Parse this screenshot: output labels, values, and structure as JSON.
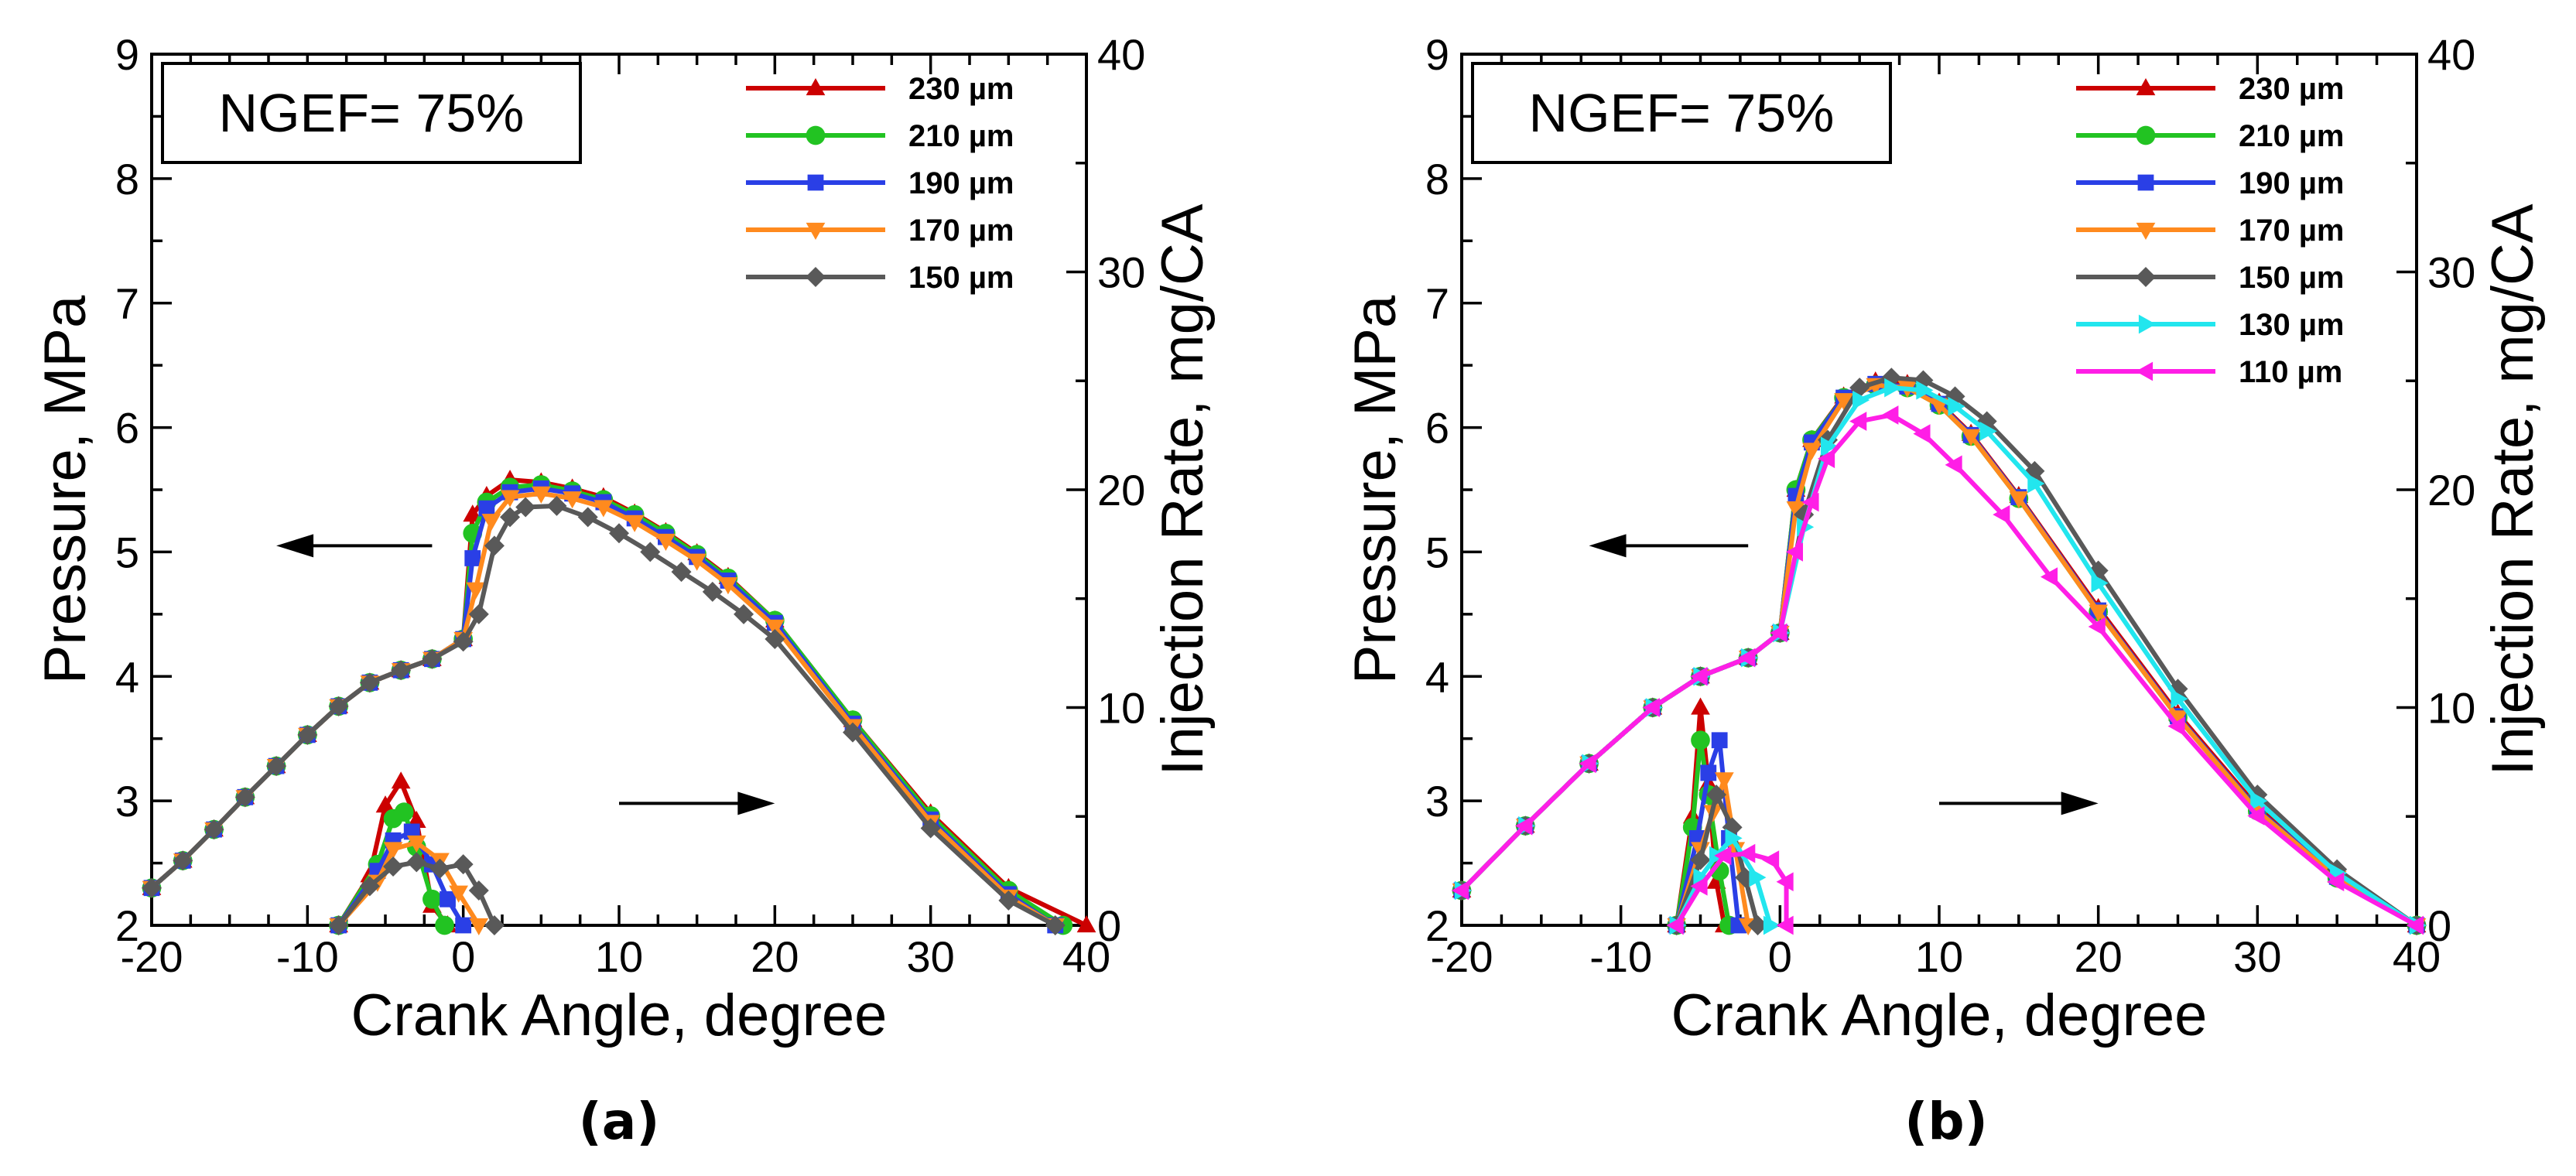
{
  "colors": {
    "230 µm": "#cc0000",
    "210 µm": "#22c322",
    "190 µm": "#2a3fe6",
    "170 µm": "#ff8a1e",
    "150 µm": "#595959",
    "130 µm": "#22e6ee",
    "110 µm": "#ff1ee6"
  },
  "chart_data": [
    {
      "type": "line",
      "panel_label": "(a)",
      "annotation": "NGEF= 75%",
      "xlabel": "Crank Angle, degree",
      "ylabel": "Pressure, MPa",
      "y2label": "Injection Rate, mg/CA",
      "xlim": [
        -20,
        40
      ],
      "ylim": [
        2,
        9
      ],
      "y2lim": [
        0,
        40
      ],
      "xticks": [
        "-20",
        "-10",
        "0",
        "10",
        "20",
        "30",
        "40"
      ],
      "yticks": [
        "2",
        "3",
        "4",
        "5",
        "6",
        "7",
        "8",
        "9"
      ],
      "y2ticks": [
        "0",
        "10",
        "20",
        "30",
        "40"
      ],
      "arrows": [
        {
          "direction": "left",
          "points_to": "Pressure, MPa",
          "from": [
            -2,
            5.05
          ],
          "to": [
            -12,
            5.05
          ]
        },
        {
          "direction": "right",
          "points_to": "Injection Rate, mg/CA",
          "from": [
            10,
            2.98
          ],
          "to": [
            20,
            2.98
          ]
        }
      ],
      "legend": [
        "230 µm",
        "210 µm",
        "190 µm",
        "170 µm",
        "150 µm"
      ],
      "series": [
        {
          "name": "230 µm",
          "marker": "triangle-up",
          "axis": "left",
          "x": [
            -20,
            -18,
            -16,
            -14,
            -12,
            -10,
            -8,
            -6,
            -4,
            -2,
            0,
            0.6,
            1.5,
            3,
            5,
            7,
            9,
            11,
            13,
            15,
            17,
            20,
            25,
            30,
            35,
            40
          ],
          "y": [
            2.3,
            2.52,
            2.77,
            3.03,
            3.28,
            3.53,
            3.76,
            3.95,
            4.05,
            4.14,
            4.3,
            5.3,
            5.45,
            5.58,
            5.56,
            5.51,
            5.44,
            5.31,
            5.16,
            4.99,
            4.8,
            4.45,
            3.65,
            2.9,
            2.3,
            2.0
          ]
        },
        {
          "name": "210 µm",
          "marker": "circle",
          "axis": "left",
          "x": [
            -20,
            -18,
            -16,
            -14,
            -12,
            -10,
            -8,
            -6,
            -4,
            -2,
            0,
            0.6,
            1.5,
            3,
            5,
            7,
            9,
            11,
            13,
            15,
            17,
            20,
            25,
            30,
            35,
            38.5
          ],
          "y": [
            2.3,
            2.52,
            2.77,
            3.03,
            3.28,
            3.53,
            3.76,
            3.95,
            4.05,
            4.14,
            4.3,
            5.15,
            5.4,
            5.52,
            5.54,
            5.49,
            5.42,
            5.3,
            5.15,
            4.98,
            4.79,
            4.45,
            3.65,
            2.88,
            2.28,
            2.0
          ]
        },
        {
          "name": "190 µm",
          "marker": "square",
          "axis": "left",
          "x": [
            -20,
            -18,
            -16,
            -14,
            -12,
            -10,
            -8,
            -6,
            -4,
            -2,
            0,
            0.6,
            1.5,
            3,
            5,
            7,
            9,
            11,
            13,
            15,
            17,
            20,
            25,
            30,
            35,
            38
          ],
          "y": [
            2.3,
            2.52,
            2.77,
            3.03,
            3.28,
            3.53,
            3.76,
            3.95,
            4.05,
            4.14,
            4.3,
            4.95,
            5.35,
            5.48,
            5.51,
            5.47,
            5.4,
            5.27,
            5.12,
            4.96,
            4.77,
            4.43,
            3.62,
            2.85,
            2.25,
            2.0
          ]
        },
        {
          "name": "170 µm",
          "marker": "triangle-down",
          "axis": "left",
          "x": [
            -20,
            -18,
            -16,
            -14,
            -12,
            -10,
            -8,
            -6,
            -4,
            -2,
            0,
            0.8,
            1.8,
            3,
            5,
            7,
            9,
            11,
            13,
            15,
            17,
            20,
            25,
            30,
            35,
            38
          ],
          "y": [
            2.3,
            2.52,
            2.77,
            3.03,
            3.28,
            3.53,
            3.76,
            3.95,
            4.05,
            4.14,
            4.3,
            4.7,
            5.25,
            5.44,
            5.47,
            5.43,
            5.36,
            5.24,
            5.09,
            4.93,
            4.74,
            4.4,
            3.6,
            2.83,
            2.23,
            2.0
          ]
        },
        {
          "name": "150 µm",
          "marker": "diamond",
          "axis": "left",
          "x": [
            -20,
            -18,
            -16,
            -14,
            -12,
            -10,
            -8,
            -6,
            -4,
            -2,
            0,
            1,
            2,
            3,
            4,
            6,
            8,
            10,
            12,
            14,
            16,
            18,
            20,
            25,
            30,
            35,
            38
          ],
          "y": [
            2.3,
            2.52,
            2.77,
            3.03,
            3.28,
            3.53,
            3.76,
            3.95,
            4.05,
            4.14,
            4.28,
            4.5,
            5.05,
            5.28,
            5.36,
            5.37,
            5.28,
            5.15,
            5.0,
            4.84,
            4.68,
            4.5,
            4.3,
            3.55,
            2.78,
            2.2,
            2.0
          ]
        },
        {
          "name": "230 µm",
          "marker": "triangle-up",
          "axis": "right",
          "x": [
            -8,
            -6,
            -5,
            -4,
            -3,
            -2,
            -1
          ],
          "y": [
            0,
            2.3,
            5.5,
            6.6,
            4.8,
            0.9,
            0
          ]
        },
        {
          "name": "210 µm",
          "marker": "circle",
          "axis": "right",
          "x": [
            -8,
            -5.5,
            -4.5,
            -3.8,
            -3,
            -2,
            -1.2
          ],
          "y": [
            0,
            2.8,
            4.9,
            5.2,
            3.6,
            1.2,
            0
          ]
        },
        {
          "name": "190 µm",
          "marker": "square",
          "axis": "right",
          "x": [
            -8,
            -5.5,
            -4.5,
            -3.3,
            -2,
            -1,
            0
          ],
          "y": [
            0,
            2.5,
            3.9,
            4.3,
            2.8,
            1.2,
            0
          ]
        },
        {
          "name": "170 µm",
          "marker": "triangle-down",
          "axis": "right",
          "x": [
            -8,
            -5.5,
            -4.5,
            -3,
            -1.5,
            -0.3,
            1
          ],
          "y": [
            0,
            2.0,
            3.5,
            3.8,
            3.0,
            1.5,
            0
          ]
        },
        {
          "name": "150 µm",
          "marker": "diamond",
          "axis": "right",
          "x": [
            -8,
            -6,
            -4.5,
            -3,
            -1.5,
            0,
            1,
            2
          ],
          "y": [
            0,
            1.8,
            2.7,
            2.9,
            2.6,
            2.8,
            1.6,
            0
          ]
        }
      ]
    },
    {
      "type": "line",
      "panel_label": "(b)",
      "annotation": "NGEF= 75%",
      "xlabel": "Crank Angle, degree",
      "ylabel": "Pressure, MPa",
      "y2label": "Injection Rate, mg/CA",
      "xlim": [
        -20,
        40
      ],
      "ylim": [
        2,
        9
      ],
      "y2lim": [
        0,
        40
      ],
      "xticks": [
        "-20",
        "-10",
        "0",
        "10",
        "20",
        "30",
        "40"
      ],
      "yticks": [
        "2",
        "3",
        "4",
        "5",
        "6",
        "7",
        "8",
        "9"
      ],
      "y2ticks": [
        "0",
        "10",
        "20",
        "30",
        "40"
      ],
      "arrows": [
        {
          "direction": "left",
          "points_to": "Pressure, MPa",
          "from": [
            -2,
            5.05
          ],
          "to": [
            -12,
            5.05
          ]
        },
        {
          "direction": "right",
          "points_to": "Injection Rate, mg/CA",
          "from": [
            10,
            2.98
          ],
          "to": [
            20,
            2.98
          ]
        }
      ],
      "legend": [
        "230 µm",
        "210 µm",
        "190 µm",
        "170 µm",
        "150 µm",
        "130 µm",
        "110 µm"
      ],
      "series": [
        {
          "name": "230 µm",
          "marker": "triangle-up",
          "axis": "left",
          "x": [
            -20,
            -16,
            -12,
            -8,
            -5,
            -2,
            0,
            1,
            2,
            4,
            6,
            8,
            10,
            12,
            15,
            20,
            25,
            30,
            35,
            40
          ],
          "y": [
            2.28,
            2.8,
            3.3,
            3.75,
            4.0,
            4.15,
            4.35,
            5.5,
            5.9,
            6.25,
            6.37,
            6.35,
            6.2,
            5.95,
            5.45,
            4.55,
            3.7,
            2.95,
            2.4,
            2.0
          ]
        },
        {
          "name": "210 µm",
          "marker": "circle",
          "axis": "left",
          "x": [
            -20,
            -16,
            -12,
            -8,
            -5,
            -2,
            0,
            1,
            2,
            4,
            6,
            8,
            10,
            12,
            15,
            20,
            25,
            30,
            35,
            40
          ],
          "y": [
            2.28,
            2.8,
            3.3,
            3.75,
            4.0,
            4.15,
            4.35,
            5.5,
            5.9,
            6.24,
            6.34,
            6.32,
            6.18,
            5.93,
            5.43,
            4.52,
            3.67,
            2.92,
            2.38,
            2.0
          ]
        },
        {
          "name": "190 µm",
          "marker": "square",
          "axis": "left",
          "x": [
            -20,
            -16,
            -12,
            -8,
            -5,
            -2,
            0,
            1,
            2,
            4,
            6,
            8,
            10,
            12,
            15,
            20,
            25,
            30,
            35,
            40
          ],
          "y": [
            2.28,
            2.8,
            3.3,
            3.75,
            4.0,
            4.15,
            4.35,
            5.45,
            5.88,
            6.24,
            6.35,
            6.33,
            6.19,
            5.94,
            5.44,
            4.53,
            3.68,
            2.93,
            2.39,
            2.0
          ]
        },
        {
          "name": "170 µm",
          "marker": "triangle-down",
          "axis": "left",
          "x": [
            -20,
            -16,
            -12,
            -8,
            -5,
            -2,
            0,
            1,
            2,
            4,
            6,
            8,
            10,
            12,
            15,
            20,
            25,
            30,
            35,
            40
          ],
          "y": [
            2.28,
            2.8,
            3.3,
            3.75,
            4.0,
            4.15,
            4.35,
            5.35,
            5.82,
            6.22,
            6.34,
            6.32,
            6.18,
            5.93,
            5.43,
            4.52,
            3.67,
            2.92,
            2.38,
            2.0
          ]
        },
        {
          "name": "150 µm",
          "marker": "diamond",
          "axis": "left",
          "x": [
            -20,
            -16,
            -12,
            -8,
            -5,
            -2,
            0,
            1.5,
            3,
            5,
            7,
            9,
            11,
            13,
            16,
            20,
            25,
            30,
            35,
            40
          ],
          "y": [
            2.28,
            2.8,
            3.3,
            3.75,
            4.0,
            4.15,
            4.35,
            5.3,
            5.9,
            6.32,
            6.4,
            6.38,
            6.25,
            6.05,
            5.65,
            4.85,
            3.9,
            3.05,
            2.45,
            2.0
          ]
        },
        {
          "name": "130 µm",
          "marker": "triangle-right",
          "axis": "left",
          "x": [
            -20,
            -16,
            -12,
            -8,
            -5,
            -2,
            0,
            1.5,
            3,
            5,
            7,
            9,
            11,
            13,
            16,
            20,
            25,
            30,
            35,
            40
          ],
          "y": [
            2.28,
            2.8,
            3.3,
            3.75,
            4.0,
            4.15,
            4.35,
            5.2,
            5.85,
            6.22,
            6.32,
            6.3,
            6.17,
            5.97,
            5.55,
            4.75,
            3.82,
            3.0,
            2.42,
            2.0
          ]
        },
        {
          "name": "110 µm",
          "marker": "triangle-left",
          "axis": "left",
          "x": [
            -20,
            -16,
            -12,
            -8,
            -5,
            -2,
            0,
            1,
            2,
            3,
            5,
            7,
            9,
            11,
            14,
            17,
            20,
            25,
            30,
            35,
            40
          ],
          "y": [
            2.28,
            2.8,
            3.3,
            3.75,
            4.0,
            4.15,
            4.35,
            5.0,
            5.4,
            5.75,
            6.05,
            6.1,
            5.95,
            5.7,
            5.3,
            4.8,
            4.4,
            3.6,
            2.88,
            2.35,
            2.0
          ]
        },
        {
          "name": "230 µm",
          "marker": "triangle-up",
          "axis": "right",
          "x": [
            -6.5,
            -5.5,
            -5,
            -4.5,
            -4,
            -3.5
          ],
          "y": [
            0,
            5.0,
            10.0,
            6.5,
            2.0,
            0
          ]
        },
        {
          "name": "210 µm",
          "marker": "circle",
          "axis": "right",
          "x": [
            -6.5,
            -5.5,
            -5,
            -4.5,
            -3.8,
            -3.2
          ],
          "y": [
            0,
            4.5,
            8.5,
            6.0,
            2.5,
            0
          ]
        },
        {
          "name": "190 µm",
          "marker": "square",
          "axis": "right",
          "x": [
            -6.5,
            -5.2,
            -4.5,
            -3.8,
            -3.2,
            -2.6
          ],
          "y": [
            0,
            4.0,
            7.0,
            8.5,
            4.0,
            0
          ]
        },
        {
          "name": "170 µm",
          "marker": "triangle-down",
          "axis": "right",
          "x": [
            -6.5,
            -5,
            -4.2,
            -3.5,
            -2.8,
            -2
          ],
          "y": [
            0,
            3.5,
            5.2,
            6.7,
            3.5,
            0
          ]
        },
        {
          "name": "150 µm",
          "marker": "diamond",
          "axis": "right",
          "x": [
            -6.5,
            -5,
            -4,
            -3,
            -2.2,
            -1.4
          ],
          "y": [
            0,
            3.0,
            6.0,
            4.5,
            2.2,
            0
          ]
        },
        {
          "name": "130 µm",
          "marker": "triangle-right",
          "axis": "right",
          "x": [
            -6.5,
            -5,
            -4,
            -3,
            -1.5,
            -0.6
          ],
          "y": [
            0,
            2.2,
            3.2,
            4.0,
            2.2,
            0
          ]
        },
        {
          "name": "110 µm",
          "marker": "triangle-left",
          "axis": "right",
          "x": [
            -6.5,
            -5,
            -3.5,
            -2,
            -0.5,
            0.4,
            0.4
          ],
          "y": [
            0,
            1.8,
            3.2,
            3.3,
            3.0,
            2.0,
            0
          ]
        }
      ]
    }
  ]
}
